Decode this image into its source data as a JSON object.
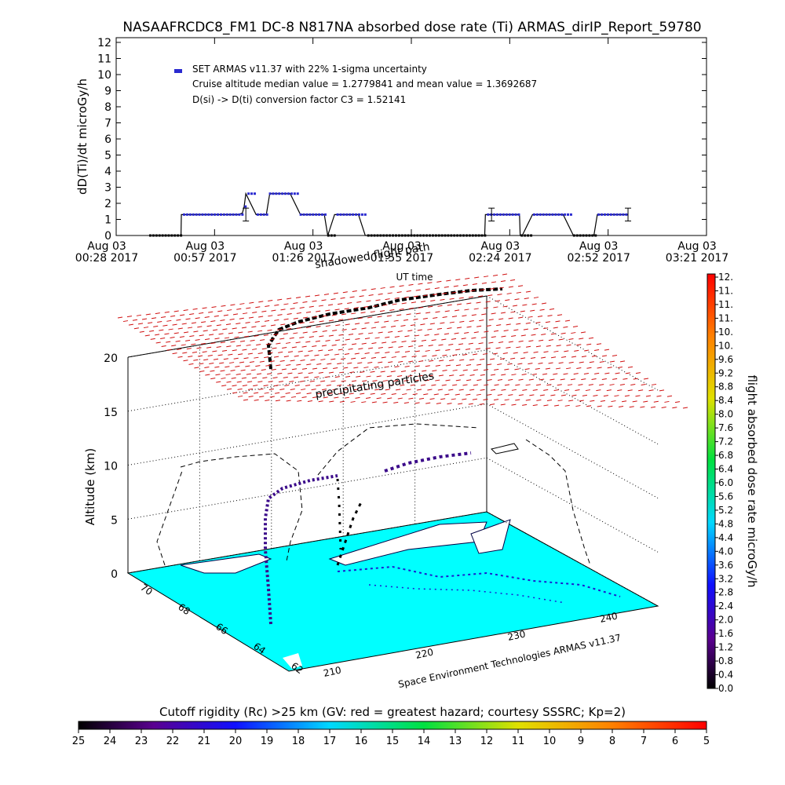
{
  "title": "NASAAFRCDC8_FM1 DC-8   N817NA absorbed dose rate (Ti) ARMAS_dirIP_Report_59780",
  "chart_data": [
    {
      "type": "line",
      "ylabel": "dD(Ti)/dt microGy/h",
      "xlabel": "UT time",
      "ylim": [
        0,
        12
      ],
      "yticks": [
        "0",
        "1",
        "2",
        "3",
        "4",
        "5",
        "6",
        "7",
        "8",
        "9",
        "10",
        "11",
        "12"
      ],
      "xticks": [
        {
          "date": "Aug 03",
          "time": "00:28 2017"
        },
        {
          "date": "Aug 03",
          "time": "00:57 2017"
        },
        {
          "date": "Aug 03",
          "time": "01:26 2017"
        },
        {
          "date": "Aug 03",
          "time": "01:55 2017"
        },
        {
          "date": "Aug 03",
          "time": "02:24 2017"
        },
        {
          "date": "Aug 03",
          "time": "02:52 2017"
        },
        {
          "date": "Aug 03",
          "time": "03:21 2017"
        }
      ],
      "legend": [
        "SET ARMAS v11.37 with 22% 1-sigma uncertainty",
        "Cruise altitude median value = 1.2779841 and mean value = 1.3692687",
        "D(si) -> D(ti) conversion factor C3 = 1.52141"
      ],
      "series": [
        {
          "color": "#2a2ad0",
          "x_minutes": [
            10,
            19,
            19.1,
            30,
            31,
            33,
            35,
            36,
            37,
            37.5,
            38,
            41,
            44,
            45,
            48,
            49.5,
            51,
            54,
            57,
            58,
            61,
            62,
            64,
            65,
            67,
            70,
            71,
            73,
            73.5,
            76,
            79,
            82,
            85,
            90,
            95,
            100,
            103,
            106,
            108,
            108.2,
            110,
            113,
            116,
            118,
            118.2,
            118.4,
            118.6,
            119,
            122,
            125,
            126,
            126.2,
            128,
            131,
            134,
            137,
            140,
            141,
            141.2,
            144,
            147,
            150
          ],
          "values": [
            0,
            0,
            1.3,
            1.3,
            1.3,
            1.3,
            1.3,
            1.3,
            1.4,
            1.8,
            2.6,
            1.3,
            1.3,
            2.6,
            2.6,
            2.6,
            2.6,
            1.3,
            1.3,
            1.3,
            1.3,
            0,
            1.3,
            1.3,
            1.3,
            1.3,
            1.3,
            0,
            0,
            0,
            0,
            0,
            0,
            0,
            0,
            0,
            0,
            0,
            0,
            1.3,
            1.3,
            1.3,
            1.3,
            1.3,
            1.3,
            0,
            0,
            0,
            1.3,
            1.3,
            1.3,
            1.3,
            1.3,
            1.3,
            0,
            0,
            0,
            1.3,
            1.3,
            1.3,
            1.3,
            1.3
          ]
        }
      ],
      "error_bar_minutes": [
        38,
        110,
        150
      ]
    },
    {
      "type": "3d-trajectory",
      "zlabel": "Altitude (km)",
      "zticks": [
        "0",
        "5",
        "10",
        "15",
        "20"
      ],
      "lat_ticks": [
        "70",
        "68",
        "66",
        "64",
        "62"
      ],
      "lon_ticks": [
        "210",
        "220",
        "230",
        "240"
      ],
      "annotations": [
        "precipitating particles",
        "shadowed flight path",
        "Space Environment Technologies ARMAS v11.37"
      ]
    }
  ],
  "dose_colorbar": {
    "label": "flight absorbed dose rate microGy/h",
    "ticks": [
      "0.0",
      "0.4",
      "0.8",
      "1.2",
      "1.6",
      "2.0",
      "2.4",
      "2.8",
      "3.2",
      "3.6",
      "4.0",
      "4.4",
      "4.8",
      "5.2",
      "5.6",
      "6.0",
      "6.4",
      "6.8",
      "7.2",
      "7.6",
      "8.0",
      "8.4",
      "8.8",
      "9.2",
      "9.6",
      "10.",
      "10.",
      "11.",
      "11.",
      "11.",
      "12."
    ]
  },
  "rigidity_colorbar": {
    "label": "Cutoff rigidity (Rc) >25 km (GV: red = greatest hazard; courtesy SSSRC; Kp=2)",
    "ticks": [
      "25",
      "24",
      "23",
      "22",
      "21",
      "20",
      "19",
      "18",
      "17",
      "16",
      "15",
      "14",
      "13",
      "12",
      "11",
      "10",
      "9",
      "8",
      "7",
      "6",
      "5"
    ]
  }
}
